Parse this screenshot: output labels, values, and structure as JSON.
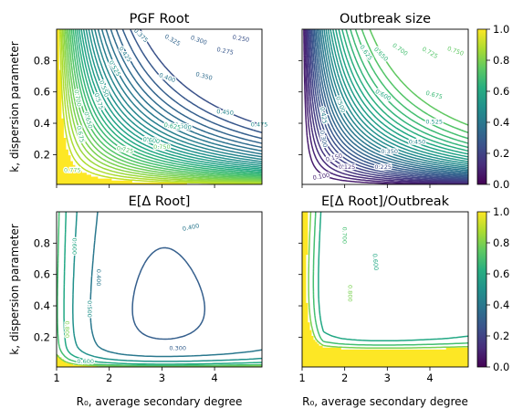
{
  "chart_data": [
    {
      "type": "contour",
      "title": "PGF Root",
      "xlabel": "",
      "ylabel": "k, dispersion parameter",
      "xlim": [
        1,
        4.9
      ],
      "ylim": [
        0.01,
        1.0
      ],
      "xticks": [
        1,
        2,
        3,
        4
      ],
      "yticks": [
        0.2,
        0.4,
        0.6,
        0.8
      ],
      "xtick_labels_shown": false,
      "ytick_labels_shown": true,
      "colormap": "viridis",
      "color_range": [
        0,
        1
      ],
      "levels": [
        0.25,
        0.275,
        0.3,
        0.325,
        0.35,
        0.375,
        0.4,
        0.425,
        0.45,
        0.475,
        0.5,
        0.525,
        0.55,
        0.575,
        0.6,
        0.625,
        0.65,
        0.675,
        0.7,
        0.725,
        0.75,
        0.775,
        0.8,
        0.825,
        0.85,
        0.875,
        0.9
      ],
      "contour_labels": [
        "0.250",
        "0.275",
        "0.300",
        "0.325",
        "0.350",
        "0.375",
        "0.400",
        "0.425",
        "0.450",
        "0.475",
        "0.500",
        "0.525",
        "0.550",
        "0.575",
        "0.600",
        "0.625",
        "0.650",
        "0.675",
        "0.700",
        "0.725",
        "0.750",
        "0.775"
      ]
    },
    {
      "type": "contour",
      "title": "Outbreak size",
      "xlabel": "",
      "ylabel": "",
      "xlim": [
        1,
        4.9
      ],
      "ylim": [
        0.01,
        1.0
      ],
      "xticks": [
        1,
        2,
        3,
        4
      ],
      "yticks": [
        0.2,
        0.4,
        0.6,
        0.8
      ],
      "xtick_labels_shown": false,
      "ytick_labels_shown": false,
      "colormap": "viridis",
      "color_range": [
        0,
        1
      ],
      "levels": [
        0.075,
        0.1,
        0.125,
        0.15,
        0.175,
        0.2,
        0.225,
        0.25,
        0.275,
        0.3,
        0.325,
        0.35,
        0.375,
        0.4,
        0.425,
        0.45,
        0.475,
        0.5,
        0.525,
        0.55,
        0.575,
        0.6,
        0.625,
        0.65,
        0.675,
        0.7,
        0.725,
        0.75
      ],
      "contour_labels": [
        "0.100",
        "0.125",
        "0.150",
        "0.225",
        "0.300",
        "0.350",
        "0.425",
        "0.450",
        "0.500",
        "0.525",
        "0.600",
        "0.625",
        "0.650",
        "0.675",
        "0.700",
        "0.725",
        "0.750"
      ],
      "colorbar": {
        "ticks": [
          "0.0",
          "0.2",
          "0.4",
          "0.6",
          "0.8",
          "1.0"
        ]
      }
    },
    {
      "type": "contour",
      "title": "E[Δ Root]",
      "xlabel": "R₀, average secondary degree",
      "ylabel": "k, dispersion parameter",
      "xlim": [
        1,
        4.9
      ],
      "ylim": [
        0.01,
        1.0
      ],
      "xticks": [
        1,
        2,
        3,
        4
      ],
      "yticks": [
        0.2,
        0.4,
        0.6,
        0.8
      ],
      "colormap": "viridis",
      "color_range": [
        0,
        1
      ],
      "levels": [
        0.3,
        0.4,
        0.5,
        0.6,
        0.7,
        0.8
      ],
      "contour_labels": [
        "0.300",
        "0.400",
        "0.400",
        "0.500",
        "0.600",
        "0.600",
        "0.800"
      ]
    },
    {
      "type": "contour",
      "title": "E[Δ Root]/Outbreak",
      "xlabel": "R₀, average secondary degree",
      "ylabel": "",
      "xlim": [
        1,
        4.9
      ],
      "ylim": [
        0.01,
        1.0
      ],
      "xticks": [
        1,
        2,
        3,
        4
      ],
      "yticks": [
        0.2,
        0.4,
        0.6,
        0.8
      ],
      "ytick_labels_shown": false,
      "colormap": "viridis",
      "color_range": [
        0,
        1
      ],
      "levels": [
        0.6,
        0.7,
        0.8
      ],
      "contour_labels": [
        "0.600",
        "0.700",
        "0.800"
      ],
      "colorbar": {
        "ticks": [
          "0.0",
          "0.2",
          "0.4",
          "0.6",
          "0.8",
          "1.0"
        ]
      }
    }
  ]
}
